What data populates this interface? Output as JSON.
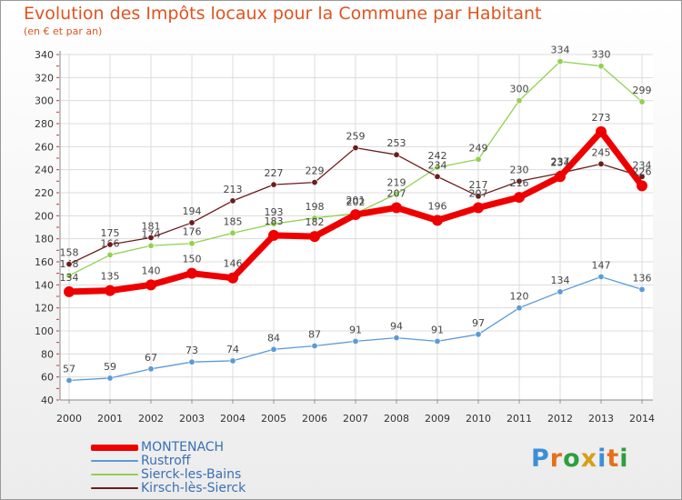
{
  "header": {
    "title": "Evolution des Impôts locaux pour la Commune par Habitant",
    "subtitle": "(en € et par an)"
  },
  "chart_data": {
    "type": "line",
    "categories": [
      "2000",
      "2001",
      "2002",
      "2003",
      "2004",
      "2005",
      "2006",
      "2007",
      "2008",
      "2009",
      "2010",
      "2011",
      "2012",
      "2013",
      "2014"
    ],
    "ylim": [
      40,
      340
    ],
    "yticks": [
      40,
      60,
      80,
      100,
      120,
      140,
      160,
      180,
      200,
      220,
      240,
      260,
      280,
      300,
      320,
      340
    ],
    "grid": true,
    "legend_position": "bottom-left",
    "series": [
      {
        "name": "MONTENACH",
        "color": "#ee0000",
        "values": [
          134,
          135,
          140,
          150,
          146,
          183,
          182,
          201,
          207,
          196,
          207,
          216,
          234,
          273,
          226
        ]
      },
      {
        "name": "Rustroff",
        "color": "#5b9bd5",
        "values": [
          57,
          59,
          67,
          73,
          74,
          84,
          87,
          91,
          94,
          91,
          97,
          120,
          134,
          147,
          136
        ]
      },
      {
        "name": "Sierck-les-Bains",
        "color": "#92d050",
        "values": [
          148,
          166,
          174,
          176,
          185,
          193,
          198,
          202,
          219,
          242,
          249,
          300,
          334,
          330,
          299
        ]
      },
      {
        "name": "Kirsch-lès-Sierck",
        "color": "#6b1c1c",
        "values": [
          158,
          175,
          181,
          194,
          213,
          227,
          229,
          259,
          253,
          234,
          217,
          230,
          237,
          245,
          234
        ]
      }
    ]
  },
  "logo": {
    "letters": [
      "P",
      "r",
      "o",
      "x",
      "i",
      "t",
      "i"
    ],
    "colors": [
      "#3b8fd9",
      "#e86e1a",
      "#2e9e3e",
      "#d4a017",
      "#3b8fd9",
      "#e86e1a",
      "#2e9e3e"
    ]
  }
}
